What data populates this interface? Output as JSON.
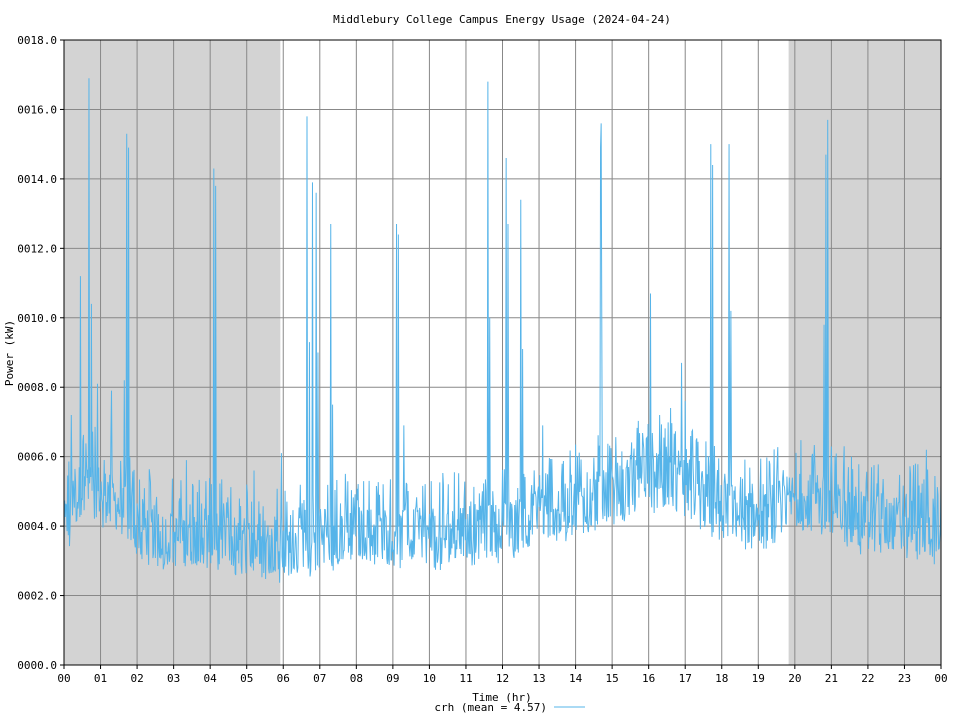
{
  "chart_data": {
    "type": "line",
    "title": "Middlebury College Campus Energy Usage (2024-04-24)",
    "xlabel": "Time (hr)",
    "ylabel": "Power (kW)",
    "xlim": [
      0,
      24
    ],
    "ylim": [
      0,
      18
    ],
    "x_ticks": [
      "00",
      "01",
      "02",
      "03",
      "04",
      "05",
      "06",
      "07",
      "08",
      "09",
      "10",
      "11",
      "12",
      "13",
      "14",
      "15",
      "16",
      "17",
      "18",
      "19",
      "20",
      "21",
      "22",
      "23",
      "00"
    ],
    "y_ticks": [
      "0000.0",
      "0002.0",
      "0004.0",
      "0006.0",
      "0008.0",
      "0010.0",
      "0012.0",
      "0014.0",
      "0016.0",
      "0018.0"
    ],
    "grid": true,
    "night_shading": [
      [
        0,
        5.92
      ],
      [
        19.83,
        24
      ]
    ],
    "legend": {
      "label": "crh (mean = 4.57)",
      "position": "bottom-center"
    },
    "series": [
      {
        "name": "crh (mean = 4.57)",
        "color": "#56b4e9",
        "base_profile": {
          "x": [
            0,
            0.5,
            1,
            1.5,
            2,
            3,
            4,
            5,
            6,
            7,
            8,
            9,
            10,
            11,
            12,
            13,
            14,
            15,
            16,
            17,
            18,
            19,
            20,
            21,
            22,
            23,
            24
          ],
          "y": [
            3.9,
            5.2,
            5.0,
            4.6,
            4.0,
            3.6,
            3.7,
            3.5,
            3.3,
            3.6,
            3.8,
            3.8,
            3.7,
            3.8,
            3.9,
            4.3,
            4.6,
            5.0,
            5.4,
            5.1,
            4.5,
            4.2,
            4.8,
            4.6,
            4.0,
            4.1,
            3.8
          ]
        },
        "spikes": [
          [
            0.2,
            7.2
          ],
          [
            0.45,
            11.2
          ],
          [
            0.68,
            16.9
          ],
          [
            0.75,
            10.4
          ],
          [
            0.92,
            8.1
          ],
          [
            1.3,
            7.9
          ],
          [
            1.72,
            15.3
          ],
          [
            1.76,
            14.9
          ],
          [
            1.65,
            8.2
          ],
          [
            4.1,
            14.3
          ],
          [
            4.15,
            13.8
          ],
          [
            3.35,
            5.9
          ],
          [
            5.2,
            5.6
          ],
          [
            5.95,
            6.1
          ],
          [
            6.65,
            15.8
          ],
          [
            6.72,
            9.3
          ],
          [
            6.8,
            13.9
          ],
          [
            6.9,
            13.6
          ],
          [
            6.95,
            9.0
          ],
          [
            7.3,
            12.7
          ],
          [
            7.35,
            7.5
          ],
          [
            9.1,
            12.7
          ],
          [
            9.15,
            12.4
          ],
          [
            9.3,
            6.9
          ],
          [
            11.6,
            16.8
          ],
          [
            11.65,
            10.0
          ],
          [
            12.1,
            14.6
          ],
          [
            12.15,
            12.7
          ],
          [
            12.5,
            13.4
          ],
          [
            12.55,
            9.1
          ],
          [
            13.1,
            6.9
          ],
          [
            14.7,
            15.6
          ],
          [
            14.68,
            14.9
          ],
          [
            14.72,
            10.0
          ],
          [
            16.05,
            10.7
          ],
          [
            16.3,
            7.2
          ],
          [
            16.6,
            7.4
          ],
          [
            16.9,
            8.7
          ],
          [
            17.0,
            7.6
          ],
          [
            17.7,
            15.0
          ],
          [
            17.75,
            14.4
          ],
          [
            18.2,
            15.0
          ],
          [
            18.25,
            10.2
          ],
          [
            20.9,
            15.7
          ],
          [
            20.85,
            14.7
          ],
          [
            20.8,
            9.8
          ],
          [
            21.35,
            6.3
          ],
          [
            21.1,
            6.0
          ],
          [
            23.6,
            6.2
          ],
          [
            23.3,
            5.8
          ]
        ]
      }
    ]
  }
}
